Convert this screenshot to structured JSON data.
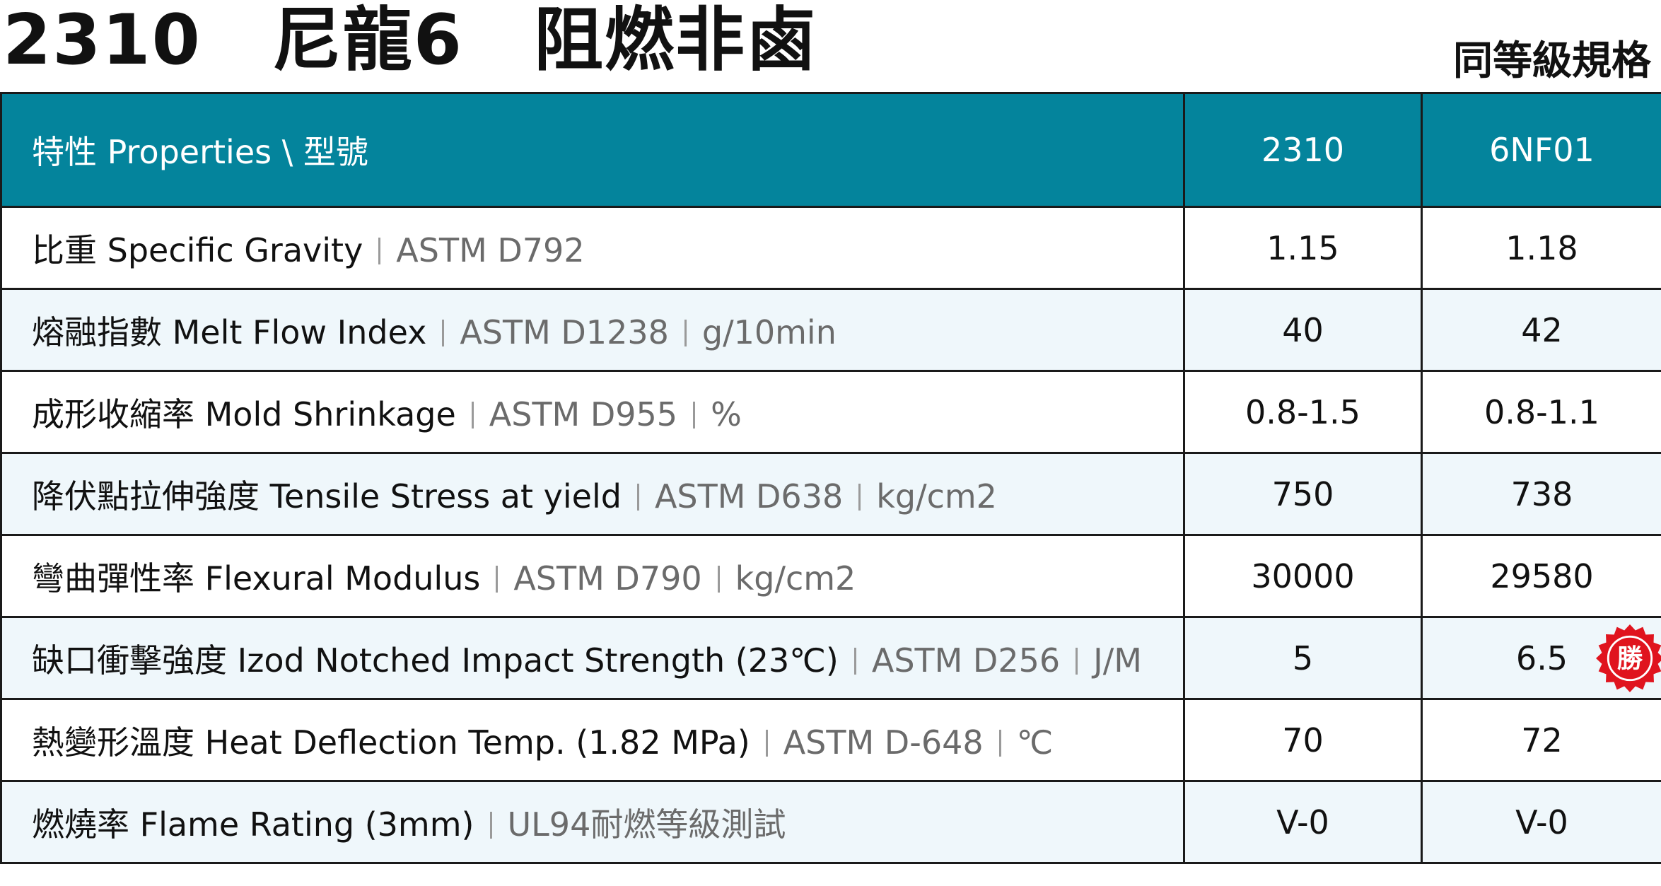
{
  "header": {
    "title": "2310　尼龍6　阻燃非鹵",
    "subtitle": "同等級規格"
  },
  "table": {
    "columns": [
      "特性 Properties \\ 型號",
      "2310",
      "6NF01"
    ],
    "rows": [
      {
        "name": "比重 Specific Gravity",
        "notes": [
          "ASTM D792"
        ],
        "values": [
          "1.15",
          "1.18"
        ]
      },
      {
        "name": "熔融指數 Melt Flow Index",
        "notes": [
          "ASTM D1238",
          "g/10min"
        ],
        "values": [
          "40",
          "42"
        ]
      },
      {
        "name": "成形收縮率 Mold Shrinkage",
        "notes": [
          "ASTM D955",
          "%"
        ],
        "values": [
          "0.8-1.5",
          "0.8-1.1"
        ]
      },
      {
        "name": "降伏點拉伸強度 Tensile Stress at yield",
        "notes": [
          "ASTM D638",
          "kg/cm2"
        ],
        "values": [
          "750",
          "738"
        ]
      },
      {
        "name": "彎曲彈性率 Flexural Modulus",
        "notes": [
          "ASTM D790",
          "kg/cm2"
        ],
        "values": [
          "30000",
          "29580"
        ]
      },
      {
        "name": "缺口衝擊強度 Izod Notched Impact Strength (23℃)",
        "notes": [
          "ASTM D256",
          "J/M"
        ],
        "values": [
          "5",
          "6.5"
        ],
        "badge": "勝"
      },
      {
        "name": "熱變形溫度 Heat Deflection Temp. (1.82 MPa)",
        "notes": [
          "ASTM D-648",
          "℃"
        ],
        "values": [
          "70",
          "72"
        ]
      },
      {
        "name": "燃燒率 Flame Rating (3mm)",
        "notes": [
          "UL94耐燃等級測試"
        ],
        "values": [
          "V-0",
          "V-0"
        ]
      }
    ]
  }
}
